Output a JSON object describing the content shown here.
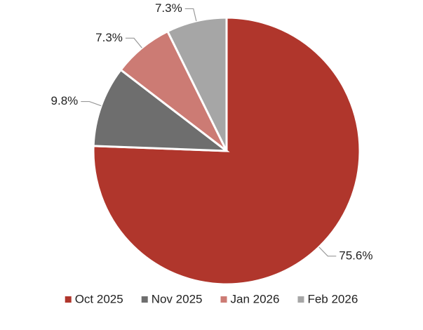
{
  "chart_data": {
    "type": "pie",
    "categories": [
      "Oct 2025",
      "Nov 2025",
      "Jan 2026",
      "Feb 2026"
    ],
    "values": [
      75.6,
      9.8,
      7.3,
      7.3
    ],
    "value_labels": [
      "75.6%",
      "9.8%",
      "7.3%",
      "7.3%"
    ],
    "colors": [
      "#b0362c",
      "#6e6e6e",
      "#cc7b74",
      "#a6a6a6"
    ],
    "legend": "bottom"
  }
}
